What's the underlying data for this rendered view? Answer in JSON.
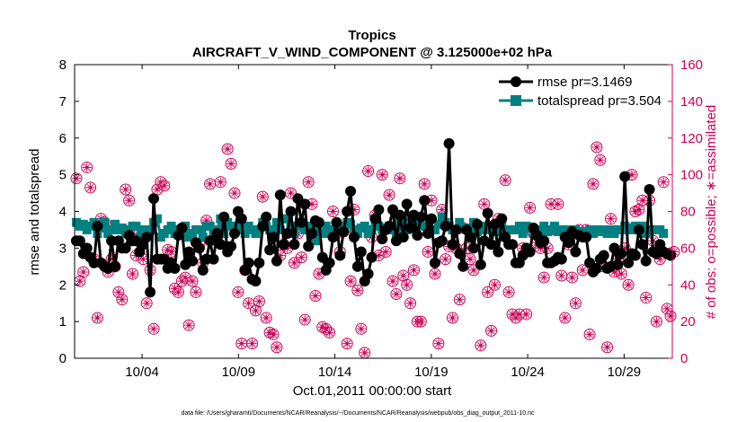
{
  "chart_data": {
    "type": "line",
    "title": "Tropics",
    "subtitle": "AIRCRAFT_V_WIND_COMPONENT @ 3.125000e+02 hPa",
    "xlabel": "Oct.01,2011 00:00:00 start",
    "ylabel": "rmse and totalspread",
    "ylabel_right": "# of obs: o=possible; ∗=assimilated",
    "x_day_range": [
      0.5,
      31.5
    ],
    "x_ticks": [
      {
        "day": 4,
        "label": "10/04"
      },
      {
        "day": 9,
        "label": "10/09"
      },
      {
        "day": 14,
        "label": "10/14"
      },
      {
        "day": 19,
        "label": "10/19"
      },
      {
        "day": 24,
        "label": "10/24"
      },
      {
        "day": 29,
        "label": "10/29"
      }
    ],
    "ylim": [
      0,
      8
    ],
    "yticks": [
      "0",
      "1",
      "2",
      "3",
      "4",
      "5",
      "6",
      "7",
      "8"
    ],
    "ylim_right": [
      0,
      160
    ],
    "yticks_right": [
      "0",
      "20",
      "40",
      "60",
      "80",
      "100",
      "120",
      "140",
      "160"
    ],
    "colors": {
      "rmse": "#000000",
      "spread": "#008080",
      "obs": "#cc0055"
    },
    "legend": {
      "position": "top-right",
      "rmse_label": "rmse pr=3.1469",
      "spread_label": "totalspread pr=3.504"
    },
    "series": [
      {
        "name": "rmse",
        "values": [
          3.2,
          3.2,
          2.85,
          3.0,
          2.75,
          2.6,
          3.6,
          2.6,
          2.5,
          2.45,
          3.2,
          2.5,
          3.2,
          3.0,
          3.0,
          3.35,
          3.2,
          3.2,
          2.9,
          3.1,
          3.3,
          1.8,
          4.35,
          2.7,
          2.7,
          2.7,
          2.45,
          2.6,
          2.45,
          3.35,
          3.55,
          2.55,
          2.9,
          2.65,
          3.15,
          3.0,
          2.4,
          2.7,
          3.2,
          2.7,
          3.4,
          3.1,
          3.85,
          2.9,
          3.05,
          3.4,
          4.0,
          3.8,
          2.4,
          2.6,
          2.15,
          2.1,
          2.6,
          3.6,
          3.85,
          2.95,
          3.3,
          2.65,
          4.45,
          3.1,
          3.4,
          4.0,
          3.1,
          4.35,
          3.7,
          4.2,
          3.05,
          3.4,
          3.75,
          3.7,
          2.75,
          2.4,
          2.6,
          3.3,
          3.7,
          2.8,
          3.45,
          4.0,
          4.55,
          3.3,
          2.5,
          2.9,
          2.1,
          2.3,
          2.75,
          3.8,
          4.05,
          3.25,
          3.5,
          3.6,
          4.05,
          3.2,
          3.9,
          3.3,
          4.2,
          3.55,
          3.9,
          3.35,
          3.85,
          4.3,
          3.4,
          3.8,
          2.6,
          3.15,
          3.2,
          3.6,
          5.85,
          3.1,
          3.5,
          2.85,
          2.5,
          3.5,
          3.3,
          3.0,
          3.65,
          2.55,
          3.2,
          3.95,
          3.1,
          3.65,
          2.9,
          3.8,
          3.3,
          3.1,
          3.1,
          2.6,
          2.6,
          2.8,
          3.0,
          2.9,
          3.55,
          3.35,
          3.15,
          3.2,
          2.6,
          2.6,
          2.65,
          2.75,
          2.7,
          3.3,
          3.15,
          3.45,
          2.9,
          3.35,
          3.3,
          3.3,
          2.6,
          2.35,
          2.45,
          2.7,
          2.8,
          2.45,
          2.5,
          3.0,
          2.55,
          2.85,
          4.95,
          2.6,
          2.85,
          2.8,
          3.5,
          3.1,
          2.65,
          4.6,
          2.9,
          2.85,
          3.1,
          2.9,
          2.85,
          2.8
        ]
      },
      {
        "name": "totalspread",
        "values": [
          3.7,
          3.6,
          3.65,
          3.5,
          3.6,
          3.7,
          3.4,
          3.55,
          3.7,
          3.4,
          3.5,
          3.65,
          3.5,
          3.55,
          3.4,
          3.5,
          3.6,
          3.6,
          3.3,
          3.5,
          3.4,
          3.5,
          3.7,
          3.8,
          3.3,
          3.4,
          3.5,
          3.6,
          3.4,
          3.5,
          3.4,
          3.6,
          3.3,
          3.4,
          3.5,
          3.5,
          3.3,
          3.6,
          3.6,
          3.4,
          3.5,
          3.8,
          3.4,
          3.7,
          3.6,
          3.5,
          3.5,
          3.6,
          3.4,
          3.6,
          3.5,
          3.4,
          3.5,
          3.7,
          3.6,
          3.5,
          3.4,
          3.7,
          3.5,
          3.8,
          3.8,
          3.6,
          3.4,
          3.6,
          3.7,
          3.5,
          3.5,
          3.6,
          3.2,
          3.5,
          3.4,
          3.6,
          3.4,
          3.5,
          3.45,
          3.6,
          3.55,
          3.7,
          3.65,
          3.5,
          3.4,
          3.55,
          3.6,
          3.4,
          3.5,
          3.6,
          3.6,
          3.5,
          3.55,
          3.6,
          3.5,
          3.4,
          3.7,
          3.6,
          3.5,
          3.7,
          3.6,
          3.65,
          3.6,
          3.6,
          3.6,
          3.5,
          3.5,
          3.65,
          3.85,
          3.7,
          3.6,
          3.5,
          3.5,
          3.7,
          3.55,
          3.55,
          3.5,
          3.7,
          3.45,
          3.5,
          3.6,
          3.5,
          3.6,
          3.45,
          3.5,
          3.6,
          3.3,
          3.5,
          3.5,
          3.5,
          3.6,
          3.4,
          3.6,
          3.55,
          3.4,
          3.5,
          3.45,
          3.6,
          3.45,
          3.5,
          3.6,
          3.45,
          3.5,
          3.4,
          3.5,
          3.4,
          3.5,
          3.4,
          3.45,
          3.4,
          3.5,
          3.4,
          3.5,
          3.45,
          3.5,
          3.4,
          3.5,
          3.4,
          3.5,
          3.5,
          3.6,
          3.55,
          3.5,
          3.6,
          3.55,
          3.6,
          3.4,
          3.45,
          3.5,
          3.5,
          3.5,
          3.4
        ]
      },
      {
        "name": "obs_possible",
        "values": [
          98,
          42,
          47,
          104,
          93,
          54,
          22,
          76,
          74,
          47,
          54,
          50,
          36,
          32,
          92,
          86,
          46,
          56,
          68,
          54,
          30,
          48,
          16,
          92,
          96,
          94,
          59,
          58,
          38,
          36,
          42,
          44,
          18,
          42,
          36,
          62,
          52,
          75,
          95,
          65,
          64,
          96,
          75,
          114,
          106,
          90,
          36,
          8,
          48,
          30,
          8,
          26,
          31,
          88,
          22,
          14,
          13,
          6,
          56,
          62,
          60,
          90,
          52,
          68,
          55,
          21,
          96,
          84,
          34,
          46,
          17,
          16,
          14,
          80,
          68,
          58,
          69,
          8,
          42,
          81,
          37,
          16,
          3,
          102,
          66,
          78,
          56,
          100,
          58,
          89,
          42,
          35,
          98,
          45,
          40,
          30,
          48,
          20,
          20,
          95,
          58,
          86,
          46,
          8,
          81,
          54,
          61,
          22,
          60,
          32,
          71,
          60,
          54,
          48,
          71,
          7,
          84,
          36,
          15,
          40,
          76,
          67,
          97,
          36,
          24,
          22,
          24,
          60,
          24,
          82,
          68,
          63,
          60,
          44,
          60,
          84,
          70,
          84,
          45,
          22,
          62,
          44,
          30,
          70,
          48,
          70,
          13,
          95,
          115,
          108,
          50,
          6,
          76,
          47,
          54,
          46,
          60,
          40,
          100,
          80,
          81,
          86,
          33,
          86,
          64,
          20,
          54,
          96,
          27,
          23,
          58
        ]
      },
      {
        "name": "obs_assimilated",
        "values": [
          98,
          42,
          47,
          104,
          93,
          54,
          22,
          76,
          74,
          47,
          54,
          50,
          36,
          32,
          92,
          86,
          46,
          56,
          68,
          54,
          30,
          48,
          16,
          92,
          96,
          94,
          59,
          58,
          38,
          36,
          42,
          44,
          18,
          42,
          36,
          62,
          52,
          75,
          95,
          65,
          64,
          96,
          75,
          114,
          106,
          90,
          36,
          8,
          48,
          30,
          8,
          26,
          31,
          88,
          22,
          14,
          13,
          6,
          56,
          62,
          60,
          90,
          52,
          68,
          55,
          21,
          96,
          84,
          34,
          46,
          17,
          16,
          14,
          80,
          68,
          58,
          69,
          8,
          42,
          81,
          37,
          16,
          3,
          102,
          66,
          78,
          56,
          100,
          58,
          89,
          42,
          35,
          98,
          45,
          40,
          30,
          48,
          20,
          20,
          95,
          58,
          86,
          46,
          8,
          81,
          54,
          61,
          22,
          60,
          32,
          71,
          60,
          54,
          48,
          71,
          7,
          84,
          36,
          15,
          40,
          76,
          67,
          97,
          36,
          24,
          22,
          24,
          60,
          24,
          82,
          68,
          63,
          60,
          44,
          60,
          84,
          70,
          84,
          45,
          22,
          62,
          44,
          30,
          70,
          48,
          70,
          13,
          95,
          115,
          108,
          50,
          6,
          76,
          47,
          54,
          46,
          60,
          40,
          100,
          80,
          81,
          86,
          33,
          86,
          64,
          20,
          54,
          96,
          27,
          23,
          58
        ]
      }
    ]
  },
  "footnote": "data file: /Users/gharamti/Documents/NCAR/Reanalysis/~/Documents/NCAR/Reanalysis/webpub/obs_diag_output_2011-10.nc"
}
